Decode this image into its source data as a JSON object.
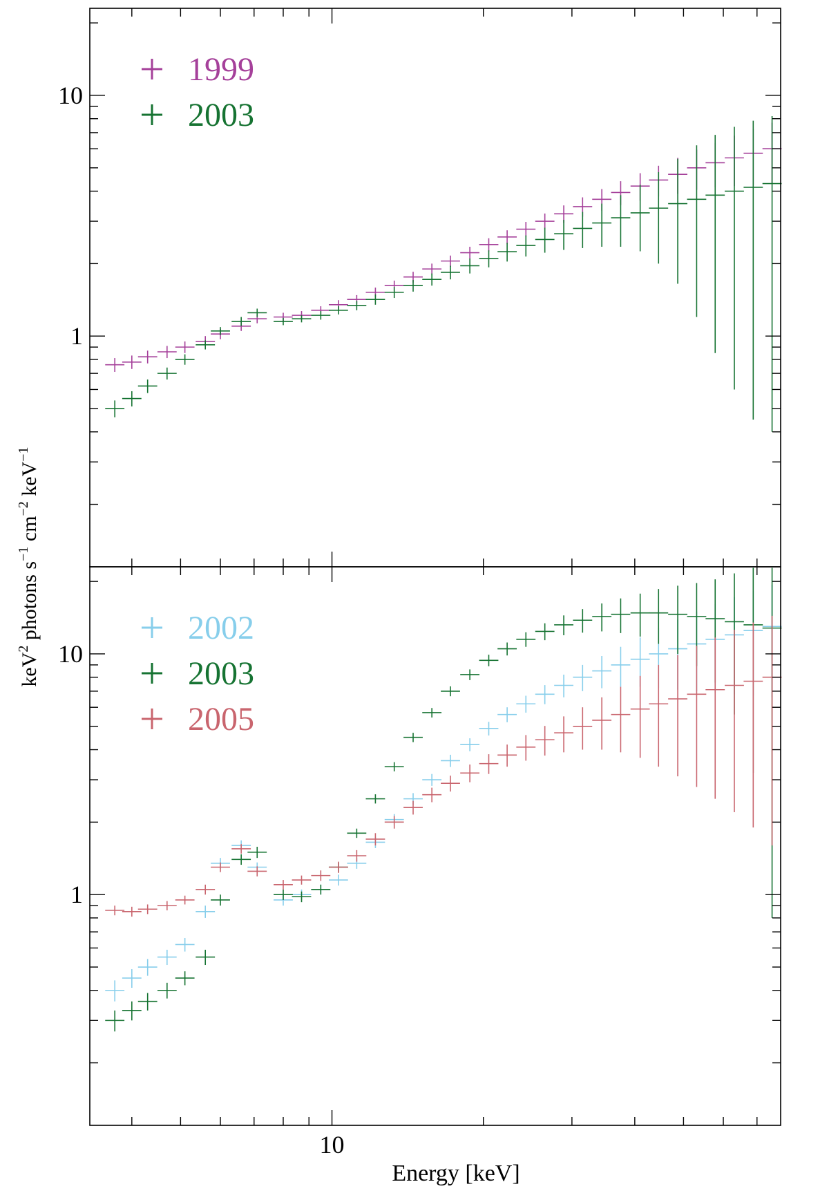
{
  "chart_data": {
    "type": "scatter",
    "title": "",
    "xlabel": "Energy [keV]",
    "ylabel_parts": [
      "keV",
      "2",
      " photons s",
      "−1",
      " cm",
      "−2",
      " keV",
      "−1"
    ],
    "xscale": "log",
    "yscale": "log",
    "xlim": [
      3.3,
      78
    ],
    "x_tick_labels": [
      {
        "value": 10,
        "label": "10"
      }
    ],
    "shared_x_axis": true,
    "panels": [
      {
        "name": "top",
        "ylim": [
          0.11,
          23
        ],
        "y_tick_labels": [
          {
            "value": 1,
            "label": "1"
          },
          {
            "value": 10,
            "label": "10"
          }
        ],
        "legend_position": "top-left",
        "series": [
          {
            "name": "1999",
            "color": "#a5409a",
            "x": [
              3.7,
              4.0,
              4.3,
              4.7,
              5.1,
              5.6,
              6.0,
              6.6,
              7.1,
              8.0,
              8.7,
              9.5,
              10.3,
              11.2,
              12.2,
              13.3,
              14.5,
              15.8,
              17.2,
              18.8,
              20.5,
              22.3,
              24.3,
              26.5,
              28.9,
              31.5,
              34.4,
              37.5,
              41.0,
              44.6,
              48.7,
              53.1,
              57.8,
              63.1,
              68.8,
              75.0
            ],
            "y": [
              0.76,
              0.78,
              0.82,
              0.86,
              0.9,
              0.95,
              1.02,
              1.1,
              1.18,
              1.2,
              1.22,
              1.28,
              1.35,
              1.42,
              1.52,
              1.62,
              1.76,
              1.9,
              2.05,
              2.22,
              2.4,
              2.58,
              2.78,
              3.0,
              3.22,
              3.45,
              3.7,
              3.95,
              4.2,
              4.45,
              4.7,
              5.0,
              5.25,
              5.5,
              5.75,
              6.0
            ],
            "yerr": [
              0.05,
              0.05,
              0.05,
              0.05,
              0.05,
              0.05,
              0.05,
              0.05,
              0.05,
              0.05,
              0.05,
              0.05,
              0.06,
              0.06,
              0.07,
              0.08,
              0.09,
              0.1,
              0.11,
              0.13,
              0.15,
              0.17,
              0.2,
              0.23,
              0.27,
              0.32,
              0.38,
              0.45,
              0.55,
              0.65,
              0.8,
              0.95,
              1.1,
              1.3,
              1.5,
              1.7
            ]
          },
          {
            "name": "2003",
            "color": "#167332",
            "x": [
              3.7,
              4.0,
              4.3,
              4.7,
              5.1,
              5.6,
              6.0,
              6.6,
              7.1,
              8.0,
              8.7,
              9.5,
              10.3,
              11.2,
              12.2,
              13.3,
              14.5,
              15.8,
              17.2,
              18.8,
              20.5,
              22.3,
              24.3,
              26.5,
              28.9,
              31.5,
              34.4,
              37.5,
              41.0,
              44.6,
              48.7,
              53.1,
              57.8,
              63.1,
              68.8,
              75.0
            ],
            "y": [
              0.5,
              0.55,
              0.62,
              0.7,
              0.8,
              0.92,
              1.05,
              1.15,
              1.25,
              1.15,
              1.18,
              1.22,
              1.28,
              1.34,
              1.42,
              1.52,
              1.62,
              1.72,
              1.84,
              1.96,
              2.1,
              2.24,
              2.38,
              2.52,
              2.66,
              2.8,
              2.95,
              3.1,
              3.25,
              3.4,
              3.55,
              3.7,
              3.85,
              4.0,
              4.15,
              4.3
            ],
            "yerr": [
              0.04,
              0.04,
              0.04,
              0.04,
              0.04,
              0.04,
              0.04,
              0.05,
              0.05,
              0.04,
              0.04,
              0.05,
              0.05,
              0.06,
              0.07,
              0.08,
              0.09,
              0.1,
              0.12,
              0.14,
              0.17,
              0.2,
              0.24,
              0.3,
              0.38,
              0.48,
              0.6,
              0.75,
              1.0,
              1.4,
              1.9,
              2.5,
              3.0,
              3.4,
              3.7,
              3.9
            ]
          }
        ]
      },
      {
        "name": "bottom",
        "ylim": [
          0.11,
          23
        ],
        "y_tick_labels": [
          {
            "value": 1,
            "label": "1"
          },
          {
            "value": 10,
            "label": "10"
          }
        ],
        "legend_position": "top-left",
        "series": [
          {
            "name": "2002",
            "color": "#87ceeb",
            "x": [
              3.7,
              4.0,
              4.3,
              4.7,
              5.1,
              5.6,
              6.0,
              6.6,
              7.1,
              8.0,
              8.7,
              9.5,
              10.3,
              11.2,
              12.2,
              13.3,
              14.5,
              15.8,
              17.2,
              18.8,
              20.5,
              22.3,
              24.3,
              26.5,
              28.9,
              31.5,
              34.4,
              37.5,
              41.0,
              44.6,
              48.7,
              53.1,
              57.8,
              63.1,
              68.8,
              75.0
            ],
            "y": [
              0.4,
              0.45,
              0.5,
              0.55,
              0.62,
              0.85,
              1.35,
              1.6,
              1.3,
              0.95,
              1.0,
              1.05,
              1.15,
              1.35,
              1.65,
              2.05,
              2.5,
              3.0,
              3.6,
              4.2,
              4.9,
              5.6,
              6.2,
              6.8,
              7.4,
              8.0,
              8.5,
              9.0,
              9.5,
              10.0,
              10.5,
              11.0,
              11.5,
              12.0,
              12.5,
              13.0
            ],
            "yerr": [
              0.04,
              0.04,
              0.04,
              0.04,
              0.04,
              0.05,
              0.07,
              0.08,
              0.06,
              0.05,
              0.05,
              0.05,
              0.06,
              0.07,
              0.09,
              0.11,
              0.14,
              0.17,
              0.21,
              0.26,
              0.32,
              0.4,
              0.5,
              0.62,
              0.8,
              1.0,
              1.3,
              1.7,
              2.2,
              2.8,
              3.4,
              4.0,
              4.6,
              5.2,
              5.8,
              6.4
            ]
          },
          {
            "name": "2003",
            "color": "#167332",
            "x": [
              3.7,
              4.0,
              4.3,
              4.7,
              5.1,
              5.6,
              6.0,
              6.6,
              7.1,
              8.0,
              8.7,
              9.5,
              10.3,
              11.2,
              12.2,
              13.3,
              14.5,
              15.8,
              17.2,
              18.8,
              20.5,
              22.3,
              24.3,
              26.5,
              28.9,
              31.5,
              34.4,
              37.5,
              41.0,
              44.6,
              48.7,
              53.1,
              57.8,
              63.1,
              68.8,
              75.0
            ],
            "y": [
              0.3,
              0.33,
              0.36,
              0.4,
              0.45,
              0.55,
              0.95,
              1.4,
              1.5,
              1.0,
              0.98,
              1.05,
              1.3,
              1.8,
              2.5,
              3.4,
              4.5,
              5.7,
              7.0,
              8.2,
              9.4,
              10.5,
              11.5,
              12.4,
              13.2,
              13.8,
              14.3,
              14.6,
              14.8,
              14.8,
              14.6,
              14.3,
              14.0,
              13.6,
              13.2,
              12.8
            ],
            "yerr": [
              0.03,
              0.03,
              0.03,
              0.03,
              0.03,
              0.04,
              0.05,
              0.07,
              0.08,
              0.05,
              0.05,
              0.05,
              0.06,
              0.08,
              0.11,
              0.15,
              0.2,
              0.26,
              0.33,
              0.42,
              0.52,
              0.65,
              0.8,
              1.0,
              1.25,
              1.55,
              1.9,
              2.4,
              3.0,
              3.8,
              4.6,
              5.4,
              6.4,
              8.0,
              10.0,
              12.0
            ]
          },
          {
            "name": "2005",
            "color": "#c9656e",
            "x": [
              3.7,
              4.0,
              4.3,
              4.7,
              5.1,
              5.6,
              6.0,
              6.6,
              7.1,
              8.0,
              8.7,
              9.5,
              10.3,
              11.2,
              12.2,
              13.3,
              14.5,
              15.8,
              17.2,
              18.8,
              20.5,
              22.3,
              24.3,
              26.5,
              28.9,
              31.5,
              34.4,
              37.5,
              41.0,
              44.6,
              48.7,
              53.1,
              57.8,
              63.1,
              68.8,
              75.0
            ],
            "y": [
              0.86,
              0.85,
              0.87,
              0.9,
              0.95,
              1.05,
              1.3,
              1.55,
              1.25,
              1.1,
              1.15,
              1.2,
              1.3,
              1.45,
              1.7,
              2.0,
              2.3,
              2.6,
              2.9,
              3.2,
              3.5,
              3.8,
              4.1,
              4.4,
              4.7,
              5.0,
              5.3,
              5.6,
              5.9,
              6.2,
              6.5,
              6.8,
              7.1,
              7.4,
              7.7,
              8.0
            ],
            "yerr": [
              0.04,
              0.04,
              0.04,
              0.04,
              0.04,
              0.05,
              0.06,
              0.07,
              0.06,
              0.05,
              0.05,
              0.06,
              0.07,
              0.08,
              0.1,
              0.12,
              0.15,
              0.18,
              0.22,
              0.27,
              0.33,
              0.4,
              0.5,
              0.62,
              0.8,
              1.0,
              1.3,
              1.7,
              2.2,
              2.8,
              3.4,
              4.0,
              4.6,
              5.2,
              5.8,
              6.4
            ]
          }
        ]
      }
    ]
  }
}
